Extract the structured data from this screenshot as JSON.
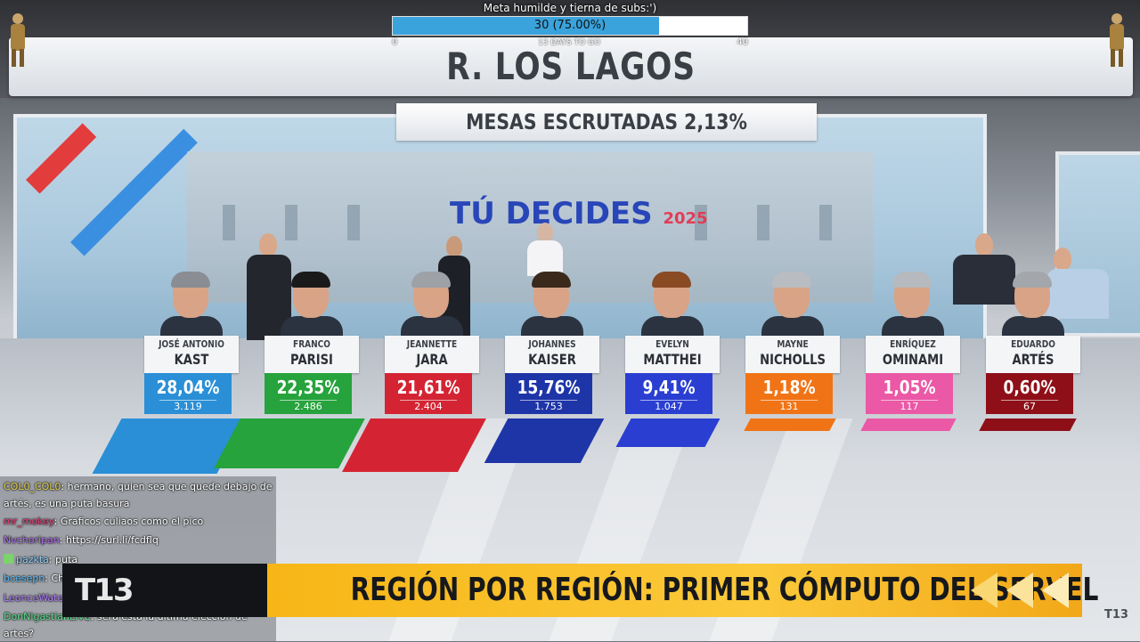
{
  "subgoal": {
    "title": "Meta humilde y tierna de subs:')",
    "progress_text": "30 (75.00%)",
    "progress_fraction": 0.75,
    "min": "0",
    "max": "40",
    "days_left": "13 DAYS TO GO",
    "fill_color": "#3aa3dc"
  },
  "broadcast": {
    "region_title": "R. LOS LAGOS",
    "counted_label": "MESAS ESCRUTADAS 2,13%",
    "wall_logo_text": "TÚ DECIDES",
    "wall_logo_year": "2025",
    "ticker": "REGIÓN POR REGIÓN: PRIMER CÓMPUTO DEL SERVEL",
    "channel_logo": "T13",
    "corner_logo": "T13"
  },
  "candidates": [
    {
      "first": "JOSÉ ANTONIO",
      "last": "KAST",
      "pct": "28,04%",
      "votes": "3.119",
      "color": "#2a8fd6"
    },
    {
      "first": "FRANCO",
      "last": "PARISI",
      "pct": "22,35%",
      "votes": "2.486",
      "color": "#26a33c"
    },
    {
      "first": "JEANNETTE",
      "last": "JARA",
      "pct": "21,61%",
      "votes": "2.404",
      "color": "#d42433"
    },
    {
      "first": "JOHANNES",
      "last": "KAISER",
      "pct": "15,76%",
      "votes": "1.753",
      "color": "#1e35a8"
    },
    {
      "first": "EVELYN",
      "last": "MATTHEI",
      "pct": "9,41%",
      "votes": "1.047",
      "color": "#2a3fd2"
    },
    {
      "first": "MAYNE",
      "last": "NICHOLLS",
      "pct": "1,18%",
      "votes": "131",
      "color": "#f07416"
    },
    {
      "first": "ENRÍQUEZ",
      "last": "OMINAMI",
      "pct": "1,05%",
      "votes": "117",
      "color": "#ea58a6"
    },
    {
      "first": "EDUARDO",
      "last": "ARTÉS",
      "pct": "0,60%",
      "votes": "67",
      "color": "#8e0f18"
    }
  ],
  "chat": [
    {
      "user": "COL0_COL0",
      "user_color": "#e6d34a",
      "text": ": hermano, quien sea que quede debajo de artés, es una puta basura"
    },
    {
      "user": "mr_mokey",
      "user_color": "#e5407a",
      "text": ": Graficos culiaos como el pico"
    },
    {
      "user": "Nvchoripan",
      "user_color": "#b06cf0",
      "text": ": https://surl.li/fcdflq"
    },
    {
      "user": "pazkta",
      "user_color": "#8fd0ff",
      "text": ": puta",
      "badge": true
    },
    {
      "user": "bcesepn",
      "user_color": "#5cc0ff",
      "text": ": Chucha"
    },
    {
      "user": "LeonceWate",
      "user_color": "#b07cff",
      "text": ": araucania qlaaaa"
    },
    {
      "user": "DonNigastianLIVE",
      "user_color": "#58e08a",
      "text": ": sera esta la ultima eleccion de artes?"
    }
  ]
}
